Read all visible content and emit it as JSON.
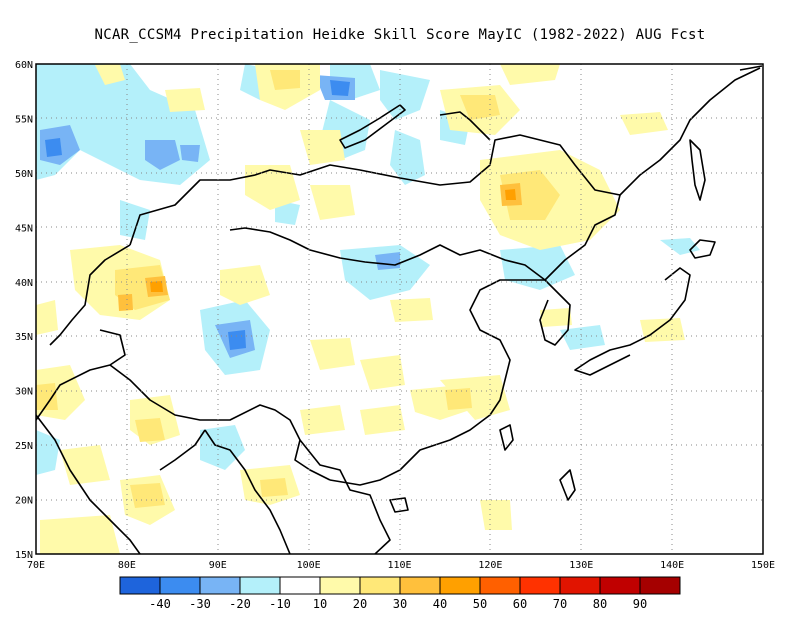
{
  "title": "NCAR_CCSM4  Precipitation Heidke Skill Score MayIC (1982-2022) AUG Fcst",
  "map": {
    "lon_range": [
      70,
      150
    ],
    "lat_range": [
      15,
      60
    ],
    "lon_ticks": [
      "70E",
      "80E",
      "90E",
      "100E",
      "110E",
      "120E",
      "130E",
      "140E",
      "150E"
    ],
    "lat_ticks": [
      "15N",
      "20N",
      "25N",
      "30N",
      "35N",
      "40N",
      "45N",
      "50N",
      "55N",
      "60N"
    ],
    "grid": "dotted",
    "land_outline_color": "#000000"
  },
  "colorbar": {
    "colors": [
      "#1e64dc",
      "#3c8cf0",
      "#78b4f5",
      "#b4f0fa",
      "#ffffff",
      "#fffaaa",
      "#ffe878",
      "#ffc03c",
      "#ffa000",
      "#ff6000",
      "#ff3200",
      "#e11400",
      "#c00000",
      "#a50000"
    ],
    "labels": [
      "-40",
      "-30",
      "-20",
      "-10",
      "10",
      "20",
      "30",
      "40",
      "50",
      "60",
      "70",
      "80",
      "90"
    ]
  }
}
